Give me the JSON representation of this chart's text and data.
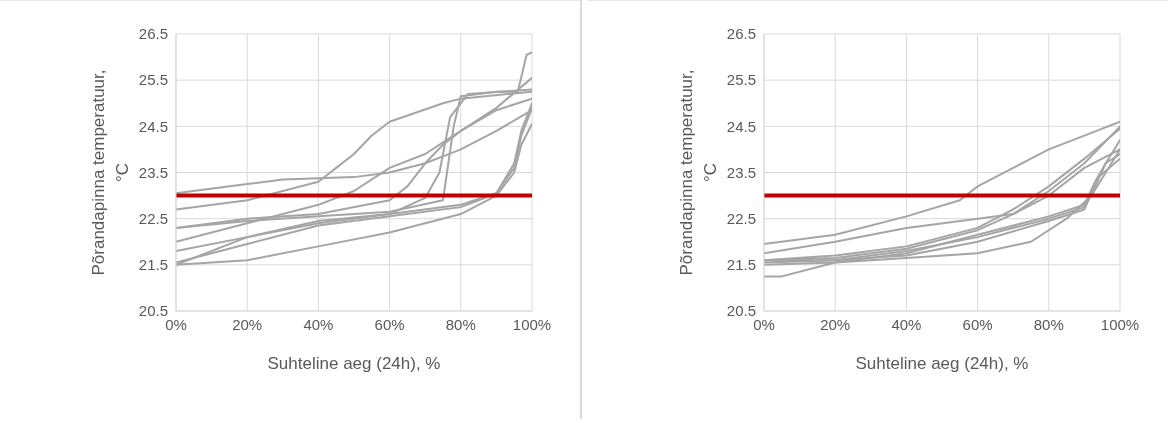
{
  "chart_data": [
    {
      "type": "line",
      "xlabel": "Suhteline aeg (24h), %",
      "ylabel": "Põrandapinna temperatuur, °C",
      "xlim": [
        0,
        1
      ],
      "xticks": [
        {
          "value": 0,
          "label": "0%"
        },
        {
          "value": 0.2,
          "label": "20%"
        },
        {
          "value": 0.4,
          "label": "40%"
        },
        {
          "value": 0.6,
          "label": "60%"
        },
        {
          "value": 0.8,
          "label": "80%"
        },
        {
          "value": 1,
          "label": "100%"
        }
      ],
      "ylim": [
        20.5,
        26.5
      ],
      "yticks": [
        20.5,
        21.5,
        22.5,
        23.5,
        24.5,
        25.5,
        26.5
      ],
      "grid": true,
      "marker": "none",
      "line_style": "solid",
      "ref_lines": [
        {
          "axis": "y",
          "value": 23,
          "color": "#c00000"
        }
      ],
      "series": [
        {
          "color": "#a5a5a5",
          "x": [
            0,
            0.2,
            0.4,
            0.45,
            0.5,
            0.55,
            0.6,
            0.75,
            0.8,
            1
          ],
          "values": [
            22.7,
            22.9,
            23.3,
            23.6,
            23.9,
            24.3,
            24.6,
            25.0,
            25.1,
            25.25
          ]
        },
        {
          "color": "#a5a5a5",
          "x": [
            0,
            0.2,
            0.3,
            0.5,
            0.6,
            0.7,
            0.8,
            0.9,
            1
          ],
          "values": [
            23.05,
            23.25,
            23.35,
            23.4,
            23.5,
            23.7,
            24.0,
            24.4,
            24.85
          ]
        },
        {
          "color": "#a5a5a5",
          "x": [
            0,
            0.2,
            0.4,
            0.6,
            0.65,
            0.7,
            0.75,
            0.8,
            0.9,
            1
          ],
          "values": [
            22.3,
            22.5,
            22.6,
            22.9,
            23.2,
            23.7,
            24.1,
            24.4,
            24.9,
            25.55
          ]
        },
        {
          "color": "#a5a5a5",
          "x": [
            0,
            0.2,
            0.4,
            0.6,
            0.75,
            0.78,
            0.8,
            0.9,
            0.96,
            0.985,
            1
          ],
          "values": [
            22.3,
            22.45,
            22.55,
            22.65,
            22.9,
            24.5,
            25.15,
            25.25,
            25.25,
            26.05,
            26.1
          ]
        },
        {
          "color": "#a5a5a5",
          "x": [
            0,
            0.2,
            0.4,
            0.5,
            0.6,
            0.7,
            0.8,
            0.9,
            1
          ],
          "values": [
            22.0,
            22.4,
            22.8,
            23.1,
            23.6,
            23.9,
            24.4,
            24.85,
            25.1
          ]
        },
        {
          "color": "#a5a5a5",
          "x": [
            0,
            0.2,
            0.4,
            0.6,
            0.7,
            0.74,
            0.77,
            0.82,
            1
          ],
          "values": [
            21.8,
            22.1,
            22.4,
            22.6,
            22.95,
            23.5,
            24.7,
            25.2,
            25.3
          ]
        },
        {
          "color": "#a5a5a5",
          "x": [
            0,
            0.2,
            0.4,
            0.6,
            0.8,
            0.85,
            0.9,
            0.95,
            0.97,
            1
          ],
          "values": [
            21.55,
            21.95,
            22.35,
            22.55,
            22.75,
            22.9,
            23.05,
            23.6,
            24.3,
            24.9
          ]
        },
        {
          "color": "#a5a5a5",
          "x": [
            0,
            0.2,
            0.4,
            0.6,
            0.8,
            0.9,
            0.95,
            0.97,
            1
          ],
          "values": [
            21.5,
            22.1,
            22.45,
            22.6,
            22.8,
            23.05,
            23.7,
            24.4,
            25.0
          ]
        },
        {
          "color": "#a5a5a5",
          "x": [
            0,
            0.2,
            0.4,
            0.6,
            0.8,
            0.9,
            0.95,
            0.97,
            1
          ],
          "values": [
            21.5,
            21.6,
            21.9,
            22.2,
            22.6,
            23.0,
            23.5,
            24.1,
            24.55
          ]
        }
      ]
    },
    {
      "type": "line",
      "xlabel": "Suhteline aeg (24h), %",
      "ylabel": "Põrandapinna temperatuur, °C",
      "xlim": [
        0,
        1
      ],
      "xticks": [
        {
          "value": 0,
          "label": "0%"
        },
        {
          "value": 0.2,
          "label": "20%"
        },
        {
          "value": 0.4,
          "label": "40%"
        },
        {
          "value": 0.6,
          "label": "60%"
        },
        {
          "value": 0.8,
          "label": "80%"
        },
        {
          "value": 1,
          "label": "100%"
        }
      ],
      "ylim": [
        20.5,
        26.5
      ],
      "yticks": [
        20.5,
        21.5,
        22.5,
        23.5,
        24.5,
        25.5,
        26.5
      ],
      "grid": true,
      "marker": "none",
      "line_style": "solid",
      "ref_lines": [
        {
          "axis": "y",
          "value": 23,
          "color": "#c00000"
        }
      ],
      "series": [
        {
          "color": "#a5a5a5",
          "x": [
            0,
            0.2,
            0.4,
            0.55,
            0.6,
            0.7,
            0.8,
            0.9,
            1
          ],
          "values": [
            21.95,
            22.15,
            22.55,
            22.9,
            23.2,
            23.6,
            24.0,
            24.3,
            24.6
          ]
        },
        {
          "color": "#a5a5a5",
          "x": [
            0,
            0.2,
            0.4,
            0.6,
            0.7,
            0.8,
            0.9,
            1
          ],
          "values": [
            21.75,
            22.0,
            22.3,
            22.5,
            22.6,
            23.1,
            23.7,
            24.5
          ]
        },
        {
          "color": "#a5a5a5",
          "x": [
            0,
            0.2,
            0.4,
            0.6,
            0.7,
            0.8,
            0.9,
            1
          ],
          "values": [
            21.6,
            21.7,
            21.9,
            22.3,
            22.7,
            23.2,
            23.8,
            24.45
          ]
        },
        {
          "color": "#a5a5a5",
          "x": [
            0,
            0.2,
            0.4,
            0.6,
            0.7,
            0.8,
            0.9,
            1
          ],
          "values": [
            21.6,
            21.65,
            21.85,
            22.25,
            22.6,
            23.0,
            23.6,
            24.0
          ]
        },
        {
          "color": "#a5a5a5",
          "x": [
            0,
            0.2,
            0.4,
            0.6,
            0.8,
            0.9,
            0.93,
            0.96,
            1
          ],
          "values": [
            21.55,
            21.6,
            21.8,
            22.1,
            22.5,
            22.75,
            23.2,
            23.7,
            24.2
          ]
        },
        {
          "color": "#a5a5a5",
          "x": [
            0,
            0.2,
            0.4,
            0.6,
            0.8,
            0.9,
            0.93,
            0.96,
            1
          ],
          "values": [
            21.5,
            21.55,
            21.75,
            22.15,
            22.55,
            22.8,
            23.3,
            23.7,
            23.9
          ]
        },
        {
          "color": "#a5a5a5",
          "x": [
            0,
            0.2,
            0.4,
            0.6,
            0.8,
            0.9,
            0.94,
            1
          ],
          "values": [
            21.6,
            21.6,
            21.7,
            22.0,
            22.45,
            22.7,
            23.4,
            23.8
          ]
        },
        {
          "color": "#a5a5a5",
          "x": [
            0,
            0.05,
            0.2,
            0.4,
            0.6,
            0.75,
            0.85,
            0.92,
            0.96,
            1
          ],
          "values": [
            21.25,
            21.25,
            21.55,
            21.65,
            21.75,
            22.0,
            22.5,
            23.0,
            23.5,
            24.0
          ]
        }
      ]
    }
  ]
}
